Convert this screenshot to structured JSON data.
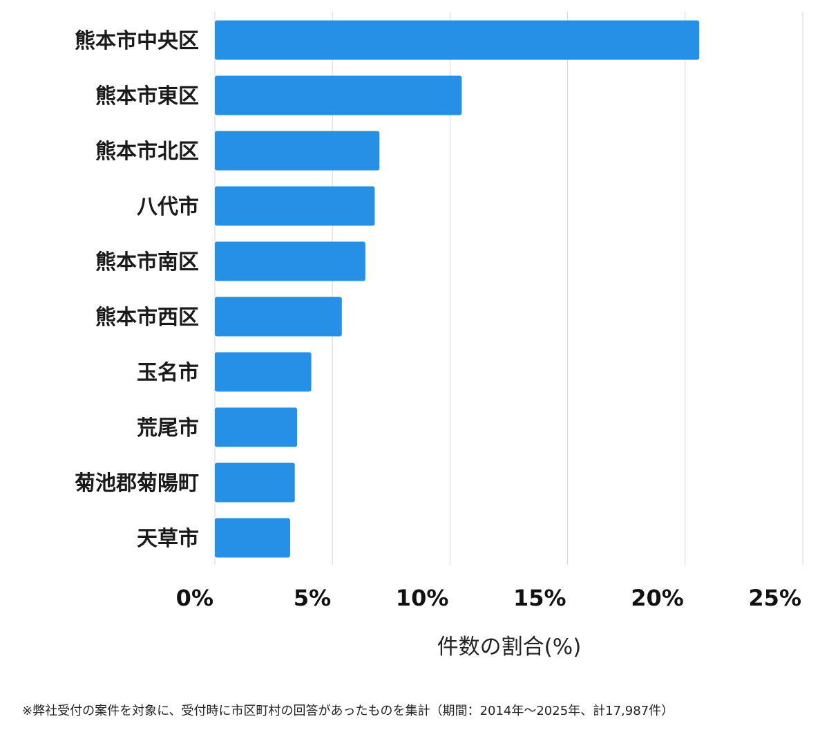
{
  "chart_data": {
    "type": "bar",
    "orientation": "horizontal",
    "categories": [
      "熊本市中央区",
      "熊本市東区",
      "熊本市北区",
      "八代市",
      "熊本市南区",
      "熊本市西区",
      "玉名市",
      "荒尾市",
      "菊池郡菊陽町",
      "天草市"
    ],
    "values": [
      20.6,
      10.5,
      7.0,
      6.8,
      6.4,
      5.4,
      4.1,
      3.5,
      3.4,
      3.2
    ],
    "xlabel": "件数の割合(%)",
    "xlim": [
      0,
      25
    ],
    "xticks": [
      "0%",
      "5%",
      "10%",
      "15%",
      "20%",
      "25%"
    ],
    "grid": "vertical",
    "bar_color": "#2590e6"
  },
  "footnote": "※弊社受付の案件を対象に、受付時に市区町村の回答があったものを集計（期間：2014年～2025年、計17,987件）"
}
